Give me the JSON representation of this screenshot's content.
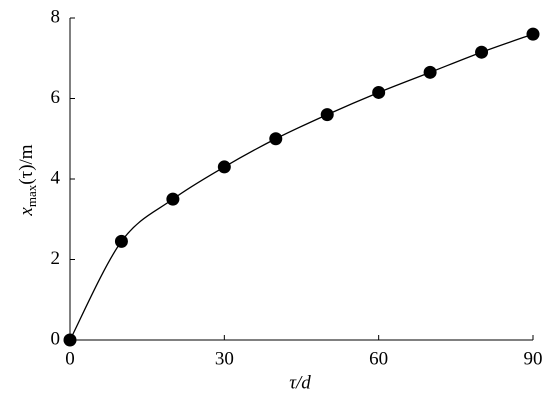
{
  "chart_data": {
    "type": "line",
    "xlabel": "τ/d",
    "ylabel": {
      "base": "x",
      "sub": "max",
      "rest": "(τ)/m"
    },
    "x": [
      0,
      10,
      20,
      30,
      40,
      50,
      60,
      70,
      80,
      90
    ],
    "series": [
      {
        "color": "#000000",
        "values": [
          0,
          2.45,
          3.5,
          4.3,
          5.0,
          5.6,
          6.15,
          6.65,
          7.15,
          7.6
        ]
      }
    ],
    "xlim": [
      0,
      90
    ],
    "xticks": [
      0,
      30,
      60,
      90
    ],
    "ylim": [
      0,
      8
    ],
    "yticks": [
      0,
      2,
      4,
      6,
      8
    ],
    "grid": false,
    "markers": true
  }
}
